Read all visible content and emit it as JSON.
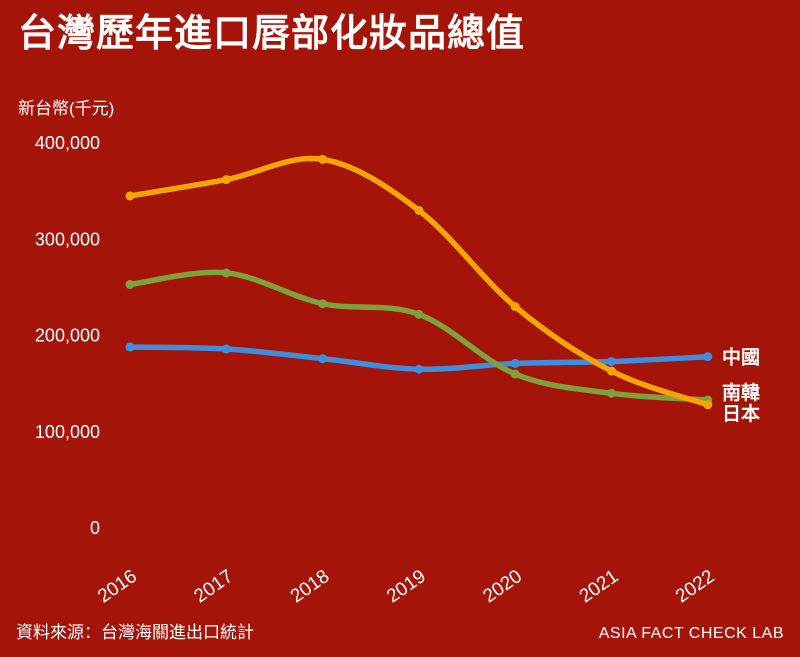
{
  "page": {
    "title": "台灣歷年進口唇部化妝品總值",
    "source": "資料來源：台灣海關進出口統計",
    "brand": "ASIA FACT CHECK LAB"
  },
  "chart_data": {
    "type": "line",
    "title": "台灣歷年進口唇部化妝品總值",
    "xlabel": "",
    "ylabel": "新台幣(千元)",
    "x": [
      "2016",
      "2017",
      "2018",
      "2019",
      "2020",
      "2021",
      "2022"
    ],
    "ylim": [
      0,
      400000
    ],
    "yticks": [
      0,
      100000,
      200000,
      300000,
      400000
    ],
    "grid": false,
    "legend_position": "right-end-labels",
    "background_color": "#A51408",
    "text_color": "#FFFFFF",
    "series": [
      {
        "name": "中國",
        "color": "#3E8EDE",
        "values": [
          188000,
          186000,
          176000,
          165000,
          171000,
          173000,
          178000
        ]
      },
      {
        "name": "南韓",
        "color": "#7DA23C",
        "values": [
          253000,
          265000,
          233000,
          222000,
          160000,
          140000,
          133000
        ]
      },
      {
        "name": "日本",
        "color": "#F6A500",
        "values": [
          345000,
          362000,
          383000,
          330000,
          230000,
          163000,
          128000
        ]
      }
    ]
  }
}
